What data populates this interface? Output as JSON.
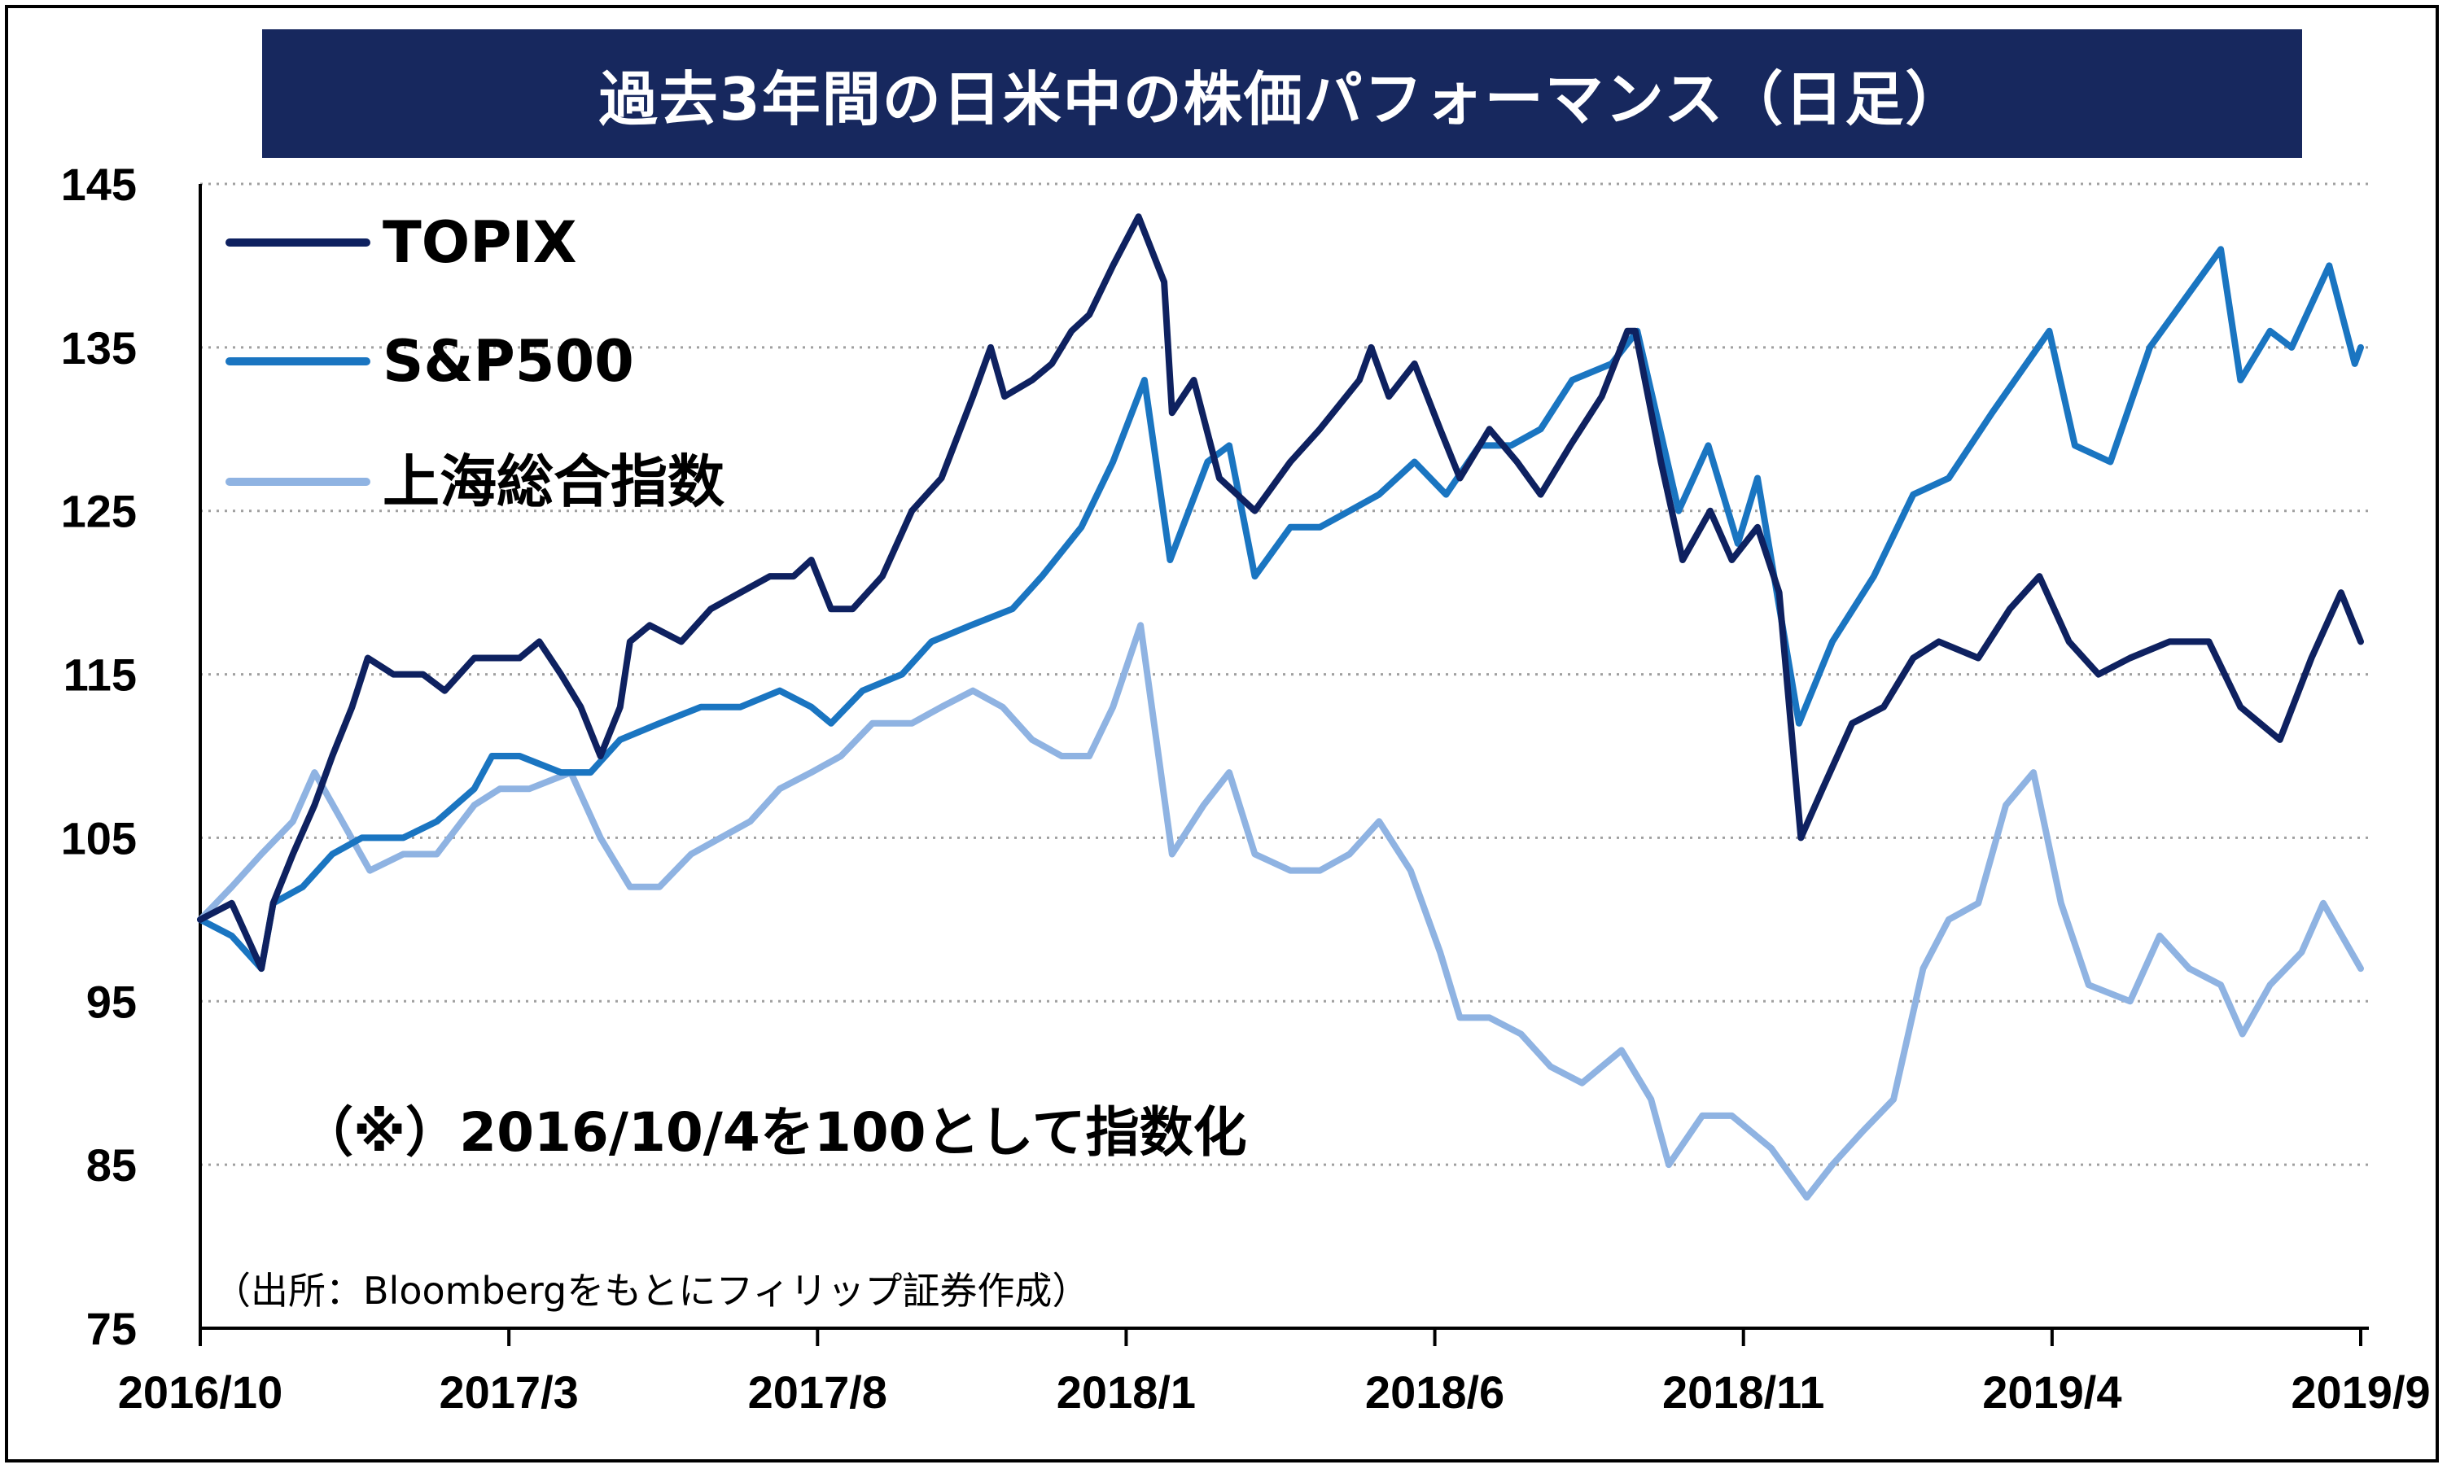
{
  "chart_data": {
    "type": "line",
    "title": "過去3年間の日米中の株価パフォーマンス（日足）",
    "note": "（※）2016/10/4を100として指数化",
    "source": "（出所：Bloombergをもとにフィリップ証券作成）",
    "ylim": [
      75,
      145
    ],
    "y_ticks": [
      "145",
      "135",
      "125",
      "115",
      "105",
      "95",
      "85",
      "75"
    ],
    "x_ticks": [
      "2016/10",
      "2017/3",
      "2017/8",
      "2018/1",
      "2018/6",
      "2018/11",
      "2019/4",
      "2019/9"
    ],
    "grid": "horizontal-dotted",
    "legend_position": "top-left",
    "series": [
      {
        "name": "TOPIX",
        "color": "#0e2160",
        "points": [
          [
            "2016-10-04",
            100
          ],
          [
            "2016-10-20",
            101
          ],
          [
            "2016-11-04",
            97
          ],
          [
            "2016-11-10",
            101
          ],
          [
            "2016-11-20",
            104
          ],
          [
            "2016-12-01",
            107
          ],
          [
            "2016-12-10",
            110
          ],
          [
            "2016-12-20",
            113
          ],
          [
            "2016-12-28",
            116
          ],
          [
            "2017-01-10",
            115
          ],
          [
            "2017-01-25",
            115
          ],
          [
            "2017-02-05",
            114
          ],
          [
            "2017-02-20",
            116
          ],
          [
            "2017-03-01",
            116
          ],
          [
            "2017-03-15",
            116
          ],
          [
            "2017-03-25",
            117
          ],
          [
            "2017-04-05",
            115
          ],
          [
            "2017-04-15",
            113
          ],
          [
            "2017-04-25",
            110
          ],
          [
            "2017-05-05",
            113
          ],
          [
            "2017-05-10",
            117
          ],
          [
            "2017-05-20",
            118
          ],
          [
            "2017-06-05",
            117
          ],
          [
            "2017-06-20",
            119
          ],
          [
            "2017-07-05",
            120
          ],
          [
            "2017-07-20",
            121
          ],
          [
            "2017-08-01",
            121
          ],
          [
            "2017-08-10",
            122
          ],
          [
            "2017-08-20",
            119
          ],
          [
            "2017-08-31",
            119
          ],
          [
            "2017-09-15",
            121
          ],
          [
            "2017-09-30",
            125
          ],
          [
            "2017-10-15",
            127
          ],
          [
            "2017-10-31",
            132
          ],
          [
            "2017-11-09",
            135
          ],
          [
            "2017-11-16",
            132
          ],
          [
            "2017-11-30",
            133
          ],
          [
            "2017-12-10",
            134
          ],
          [
            "2017-12-20",
            136
          ],
          [
            "2017-12-29",
            137
          ],
          [
            "2018-01-10",
            140
          ],
          [
            "2018-01-23",
            143
          ],
          [
            "2018-02-05",
            139
          ],
          [
            "2018-02-09",
            131
          ],
          [
            "2018-02-20",
            133
          ],
          [
            "2018-03-05",
            127
          ],
          [
            "2018-03-23",
            125
          ],
          [
            "2018-04-10",
            128
          ],
          [
            "2018-04-25",
            130
          ],
          [
            "2018-05-15",
            133
          ],
          [
            "2018-05-21",
            135
          ],
          [
            "2018-05-30",
            132
          ],
          [
            "2018-06-12",
            134
          ],
          [
            "2018-06-25",
            130
          ],
          [
            "2018-07-05",
            127
          ],
          [
            "2018-07-20",
            130
          ],
          [
            "2018-08-03",
            128
          ],
          [
            "2018-08-15",
            126
          ],
          [
            "2018-08-30",
            129
          ],
          [
            "2018-09-15",
            132
          ],
          [
            "2018-09-28",
            136
          ],
          [
            "2018-10-02",
            136
          ],
          [
            "2018-10-15",
            128
          ],
          [
            "2018-10-26",
            122
          ],
          [
            "2018-11-09",
            125
          ],
          [
            "2018-11-20",
            122
          ],
          [
            "2018-12-03",
            124
          ],
          [
            "2018-12-14",
            120
          ],
          [
            "2018-12-25",
            105
          ],
          [
            "2019-01-05",
            108
          ],
          [
            "2019-01-20",
            112
          ],
          [
            "2019-02-05",
            113
          ],
          [
            "2019-02-20",
            116
          ],
          [
            "2019-03-05",
            117
          ],
          [
            "2019-03-25",
            116
          ],
          [
            "2019-04-10",
            119
          ],
          [
            "2019-04-25",
            121
          ],
          [
            "2019-05-10",
            117
          ],
          [
            "2019-05-25",
            115
          ],
          [
            "2019-06-10",
            116
          ],
          [
            "2019-06-30",
            117
          ],
          [
            "2019-07-20",
            117
          ],
          [
            "2019-08-05",
            113
          ],
          [
            "2019-08-25",
            111
          ],
          [
            "2019-09-10",
            116
          ],
          [
            "2019-09-25",
            120
          ],
          [
            "2019-10-05",
            117
          ]
        ]
      },
      {
        "name": "S&P500",
        "color": "#1a75c1",
        "points": [
          [
            "2016-10-04",
            100
          ],
          [
            "2016-10-20",
            99
          ],
          [
            "2016-11-04",
            97
          ],
          [
            "2016-11-10",
            101
          ],
          [
            "2016-11-25",
            102
          ],
          [
            "2016-12-10",
            104
          ],
          [
            "2016-12-25",
            105
          ],
          [
            "2017-01-15",
            105
          ],
          [
            "2017-02-01",
            106
          ],
          [
            "2017-02-20",
            108
          ],
          [
            "2017-03-01",
            110
          ],
          [
            "2017-03-15",
            110
          ],
          [
            "2017-04-05",
            109
          ],
          [
            "2017-04-20",
            109
          ],
          [
            "2017-05-05",
            111
          ],
          [
            "2017-05-25",
            112
          ],
          [
            "2017-06-15",
            113
          ],
          [
            "2017-07-05",
            113
          ],
          [
            "2017-07-25",
            114
          ],
          [
            "2017-08-10",
            113
          ],
          [
            "2017-08-20",
            112
          ],
          [
            "2017-09-05",
            114
          ],
          [
            "2017-09-25",
            115
          ],
          [
            "2017-10-10",
            117
          ],
          [
            "2017-10-30",
            118
          ],
          [
            "2017-11-20",
            119
          ],
          [
            "2017-12-05",
            121
          ],
          [
            "2017-12-25",
            124
          ],
          [
            "2018-01-10",
            128
          ],
          [
            "2018-01-26",
            133
          ],
          [
            "2018-02-08",
            122
          ],
          [
            "2018-02-27",
            128
          ],
          [
            "2018-03-10",
            129
          ],
          [
            "2018-03-23",
            121
          ],
          [
            "2018-04-10",
            124
          ],
          [
            "2018-04-25",
            124
          ],
          [
            "2018-05-10",
            125
          ],
          [
            "2018-05-25",
            126
          ],
          [
            "2018-06-12",
            128
          ],
          [
            "2018-06-28",
            126
          ],
          [
            "2018-07-15",
            129
          ],
          [
            "2018-07-31",
            129
          ],
          [
            "2018-08-15",
            130
          ],
          [
            "2018-08-31",
            133
          ],
          [
            "2018-09-20",
            134
          ],
          [
            "2018-10-03",
            136
          ],
          [
            "2018-10-24",
            125
          ],
          [
            "2018-11-08",
            129
          ],
          [
            "2018-11-23",
            123
          ],
          [
            "2018-12-03",
            127
          ],
          [
            "2018-12-24",
            112
          ],
          [
            "2019-01-10",
            117
          ],
          [
            "2019-01-31",
            121
          ],
          [
            "2019-02-20",
            126
          ],
          [
            "2019-03-10",
            127
          ],
          [
            "2019-04-01",
            131
          ],
          [
            "2019-04-30",
            136
          ],
          [
            "2019-05-13",
            129
          ],
          [
            "2019-05-31",
            128
          ],
          [
            "2019-06-20",
            135
          ],
          [
            "2019-07-26",
            141
          ],
          [
            "2019-08-05",
            133
          ],
          [
            "2019-08-20",
            136
          ],
          [
            "2019-08-31",
            135
          ],
          [
            "2019-09-19",
            140
          ],
          [
            "2019-10-02",
            134
          ],
          [
            "2019-10-05",
            135
          ]
        ]
      },
      {
        "name": "上海総合指数",
        "color": "#8fb3e2",
        "points": [
          [
            "2016-10-04",
            100
          ],
          [
            "2016-10-20",
            102
          ],
          [
            "2016-11-04",
            104
          ],
          [
            "2016-11-20",
            106
          ],
          [
            "2016-12-01",
            109
          ],
          [
            "2016-12-15",
            106
          ],
          [
            "2016-12-29",
            103
          ],
          [
            "2017-01-15",
            104
          ],
          [
            "2017-02-01",
            104
          ],
          [
            "2017-02-20",
            107
          ],
          [
            "2017-03-05",
            108
          ],
          [
            "2017-03-20",
            108
          ],
          [
            "2017-04-10",
            109
          ],
          [
            "2017-04-25",
            105
          ],
          [
            "2017-05-10",
            102
          ],
          [
            "2017-05-25",
            102
          ],
          [
            "2017-06-10",
            104
          ],
          [
            "2017-06-25",
            105
          ],
          [
            "2017-07-10",
            106
          ],
          [
            "2017-07-25",
            108
          ],
          [
            "2017-08-10",
            109
          ],
          [
            "2017-08-25",
            110
          ],
          [
            "2017-09-10",
            112
          ],
          [
            "2017-09-30",
            112
          ],
          [
            "2017-10-15",
            113
          ],
          [
            "2017-10-31",
            114
          ],
          [
            "2017-11-15",
            113
          ],
          [
            "2017-11-30",
            111
          ],
          [
            "2017-12-15",
            110
          ],
          [
            "2017-12-29",
            110
          ],
          [
            "2018-01-10",
            113
          ],
          [
            "2018-01-24",
            118
          ],
          [
            "2018-02-09",
            104
          ],
          [
            "2018-02-25",
            107
          ],
          [
            "2018-03-10",
            109
          ],
          [
            "2018-03-23",
            104
          ],
          [
            "2018-04-10",
            103
          ],
          [
            "2018-04-25",
            103
          ],
          [
            "2018-05-10",
            104
          ],
          [
            "2018-05-25",
            106
          ],
          [
            "2018-06-10",
            103
          ],
          [
            "2018-06-25",
            98
          ],
          [
            "2018-07-05",
            94
          ],
          [
            "2018-07-20",
            94
          ],
          [
            "2018-08-05",
            93
          ],
          [
            "2018-08-20",
            91
          ],
          [
            "2018-09-05",
            90
          ],
          [
            "2018-09-25",
            92
          ],
          [
            "2018-10-10",
            89
          ],
          [
            "2018-10-19",
            85
          ],
          [
            "2018-11-05",
            88
          ],
          [
            "2018-11-20",
            88
          ],
          [
            "2018-12-10",
            86
          ],
          [
            "2018-12-28",
            83
          ],
          [
            "2019-01-10",
            85
          ],
          [
            "2019-01-25",
            87
          ],
          [
            "2019-02-10",
            89
          ],
          [
            "2019-02-25",
            97
          ],
          [
            "2019-03-10",
            100
          ],
          [
            "2019-03-25",
            101
          ],
          [
            "2019-04-08",
            107
          ],
          [
            "2019-04-22",
            109
          ],
          [
            "2019-05-06",
            101
          ],
          [
            "2019-05-20",
            96
          ],
          [
            "2019-06-10",
            95
          ],
          [
            "2019-06-25",
            99
          ],
          [
            "2019-07-10",
            97
          ],
          [
            "2019-07-26",
            96
          ],
          [
            "2019-08-06",
            93
          ],
          [
            "2019-08-20",
            96
          ],
          [
            "2019-09-05",
            98
          ],
          [
            "2019-09-16",
            101
          ],
          [
            "2019-10-05",
            97
          ]
        ]
      }
    ]
  }
}
